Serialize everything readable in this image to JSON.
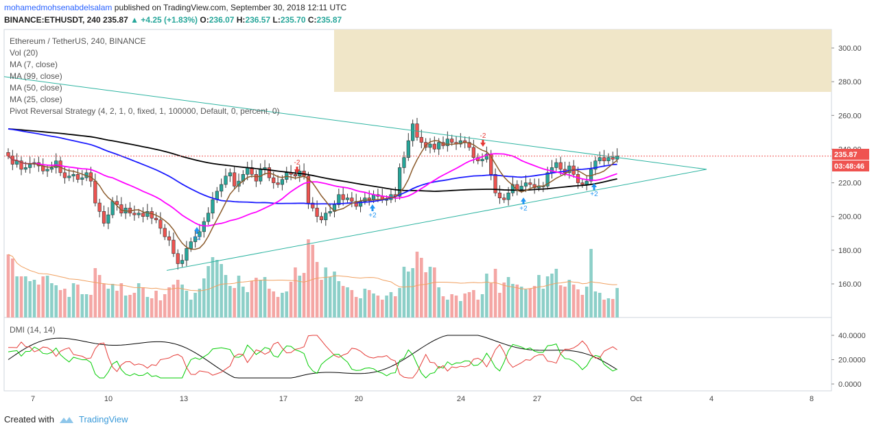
{
  "header": {
    "author": "mohamedmohsenabdelsalam",
    "published_text": "published on TradingView.com, September 30, 2018 12:11 UTC",
    "symbol": "BINANCE:ETHUSDT, 240",
    "last": "235.87",
    "change": "▲ +4.25 (+1.83%)",
    "open_label": "O:",
    "open": "236.07",
    "high_label": "H:",
    "high": "236.57",
    "low_label": "L:",
    "low": "235.70",
    "close_label": "C:",
    "close": "235.87"
  },
  "legend": [
    "Ethereum / TetherUS, 240, BINANCE",
    "Vol (20)",
    "MA (7, close)",
    "MA (99, close)",
    "MA (50, close)",
    "MA (25, close)",
    "Pivot Reversal Strategy (4, 2, 1, 0, fixed, 1, 100000, Default, 0, percent, 0)"
  ],
  "price_badge": "235.87",
  "countdown_badge": "03:48:46",
  "dmi_label": "DMI (14, 14)",
  "footer": {
    "created_with": "Created with",
    "brand": "TradingView"
  },
  "colors": {
    "up": "#26a69a",
    "down": "#ef5350",
    "ma7": "#8b5a2b",
    "ma25": "#ff00ff",
    "ma50": "#1a1aff",
    "ma99": "#000000",
    "trend": "#2bb3a0",
    "vol_up": "#8ccfc8",
    "vol_down": "#f4a6a4",
    "shade": "#f0e6c8",
    "dmi_plus": "#00cc00",
    "dmi_minus": "#e53935",
    "adx": "#000000"
  },
  "chart_data": {
    "type": "candlestick",
    "x_ticks": [
      "7",
      "10",
      "13",
      "17",
      "20",
      "24",
      "27",
      "Oct",
      "4",
      "8"
    ],
    "price_ticks": [
      160,
      180,
      200,
      220,
      240,
      260,
      280,
      300
    ],
    "price_tick_labels": [
      "160.00",
      "180.00",
      "200.00",
      "220.00",
      "240.00",
      "260.00",
      "280.00",
      "300.00"
    ],
    "ylim": [
      140,
      310
    ],
    "last_price": 235.87,
    "closes": [
      236,
      231,
      233,
      228,
      229,
      231,
      232,
      230,
      227,
      228,
      229,
      233,
      226,
      223,
      224,
      225,
      222,
      223,
      226,
      221,
      208,
      203,
      196,
      201,
      209,
      207,
      202,
      205,
      202,
      201,
      202,
      200,
      203,
      199,
      198,
      193,
      188,
      186,
      178,
      172,
      174,
      181,
      185,
      188,
      191,
      197,
      202,
      210,
      215,
      219,
      224,
      226,
      218,
      221,
      225,
      229,
      225,
      221,
      228,
      229,
      223,
      220,
      219,
      222,
      226,
      225,
      224,
      227,
      224,
      208,
      205,
      200,
      198,
      202,
      203,
      207,
      213,
      210,
      211,
      209,
      206,
      209,
      211,
      210,
      213,
      212,
      210,
      210,
      213,
      212,
      229,
      235,
      245,
      255,
      247,
      244,
      241,
      243,
      240,
      244,
      242,
      246,
      244,
      243,
      245,
      244,
      241,
      235,
      233,
      234,
      237,
      225,
      214,
      211,
      210,
      214,
      219,
      216,
      218,
      220,
      219,
      217,
      218,
      218,
      226,
      229,
      232,
      228,
      226,
      230,
      225,
      220,
      219,
      221,
      228,
      233,
      235,
      233,
      235,
      234,
      236
    ],
    "volumes": [
      92,
      86,
      60,
      60,
      60,
      53,
      55,
      48,
      60,
      61,
      50,
      47,
      40,
      42,
      30,
      50,
      48,
      34,
      34,
      33,
      72,
      62,
      49,
      42,
      49,
      39,
      50,
      32,
      33,
      36,
      50,
      44,
      30,
      28,
      39,
      25,
      34,
      44,
      48,
      55,
      48,
      39,
      26,
      36,
      42,
      57,
      75,
      88,
      84,
      78,
      62,
      46,
      43,
      61,
      45,
      37,
      53,
      58,
      55,
      59,
      42,
      38,
      30,
      36,
      38,
      52,
      73,
      61,
      65,
      114,
      106,
      81,
      55,
      73,
      59,
      67,
      53,
      46,
      44,
      40,
      30,
      28,
      42,
      40,
      35,
      32,
      26,
      32,
      37,
      31,
      43,
      74,
      67,
      72,
      96,
      87,
      66,
      74,
      73,
      44,
      31,
      26,
      34,
      32,
      24,
      35,
      37,
      40,
      26,
      34,
      64,
      50,
      71,
      36,
      51,
      59,
      49,
      48,
      45,
      41,
      42,
      46,
      62,
      42,
      60,
      64,
      71,
      47,
      45,
      55,
      48,
      41,
      33,
      45,
      100,
      38,
      36,
      26,
      28,
      27,
      43
    ],
    "markers": [
      "+2",
      "+2",
      "+2",
      "-2",
      "-2",
      "+2"
    ],
    "dmi_ticks": [
      0,
      20,
      40
    ],
    "dmi_tick_labels": [
      "0.0000",
      "20.0000",
      "40.0000"
    ]
  }
}
